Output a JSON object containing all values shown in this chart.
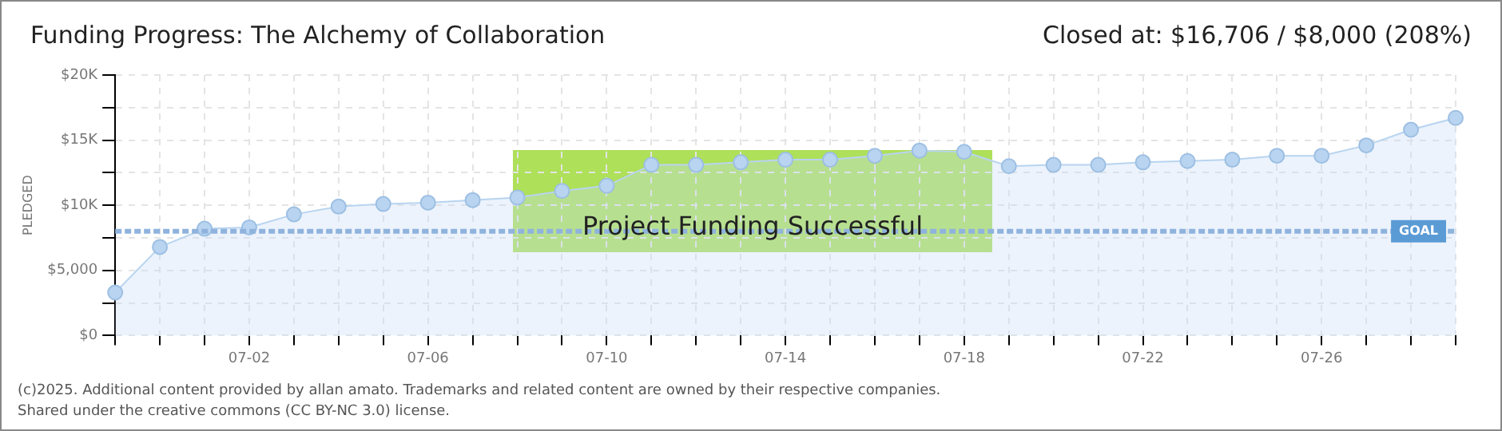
{
  "chart_data": {
    "type": "area",
    "title": "Funding Progress: The Alchemy of Collaboration",
    "subtitle": "Closed at: $16,706 / $8,000 (208%)",
    "ylabel": "PLEDGED",
    "categories": [
      null,
      null,
      null,
      "07-02",
      null,
      null,
      null,
      "07-06",
      null,
      null,
      null,
      "07-10",
      null,
      null,
      null,
      "07-14",
      null,
      null,
      null,
      "07-18",
      null,
      null,
      null,
      "07-22",
      null,
      null,
      null,
      "07-26",
      null,
      null,
      null
    ],
    "series": [
      {
        "color": "#b8d4f0",
        "values": [
          3300,
          6800,
          8200,
          8300,
          9300,
          9900,
          10100,
          10200,
          10400,
          10600,
          11100,
          11500,
          13100,
          13100,
          13300,
          13500,
          13500,
          13800,
          14200,
          14100,
          13000,
          13100,
          13100,
          13300,
          13400,
          13500,
          13800,
          13800,
          14600,
          15800,
          16706
        ]
      }
    ],
    "ylim": [
      0,
      20000
    ],
    "yticks": [
      {
        "value": 0,
        "label": "$0"
      },
      {
        "value": 2500,
        "label": null
      },
      {
        "value": 5000,
        "label": "$5,000"
      },
      {
        "value": 7500,
        "label": null
      },
      {
        "value": 10000,
        "label": "$10K"
      },
      {
        "value": 12500,
        "label": null
      },
      {
        "value": 15000,
        "label": "$15K"
      },
      {
        "value": 17500,
        "label": null
      },
      {
        "value": 20000,
        "label": "$20K"
      }
    ],
    "ref_lines": [
      {
        "axis": "y",
        "value": 8000,
        "label": "GOAL",
        "color": "#8fb3dd",
        "line_style": "dashed"
      }
    ],
    "annotations": [
      "Project Funding Successful",
      "(c)2025. Additional content provided by allan amato. Trademarks and related content are owned by their respective companies.",
      "Shared under the creative commons (CC BY-NC 3.0) license."
    ],
    "grid": true,
    "legend": false,
    "marker": "circle"
  }
}
